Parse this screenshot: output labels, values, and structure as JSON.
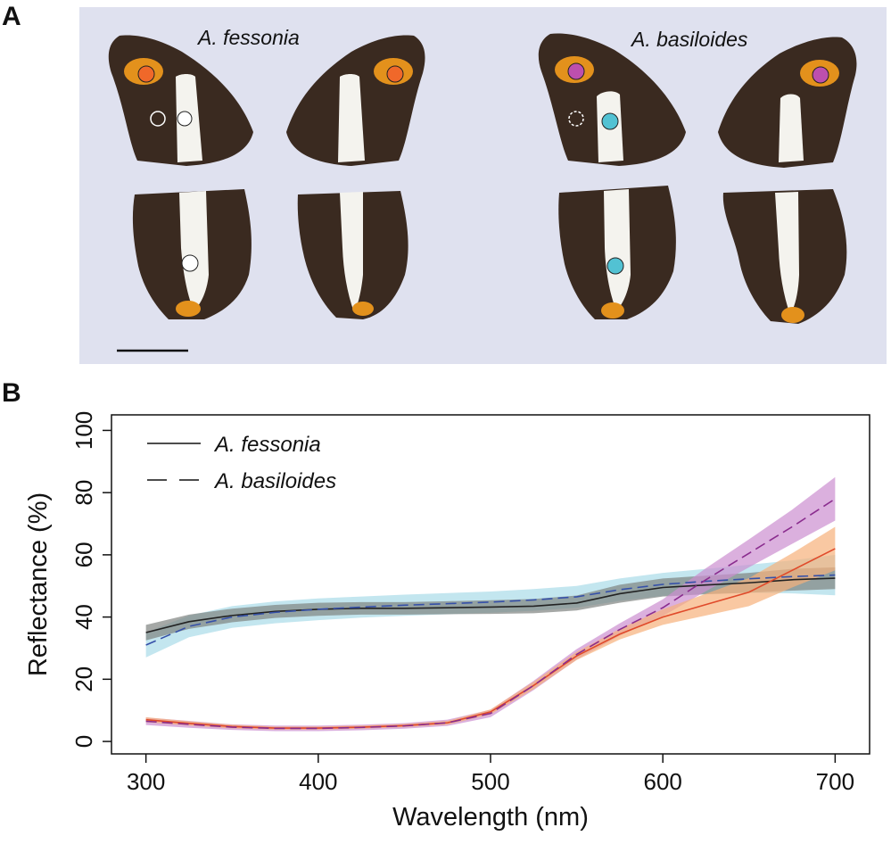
{
  "panel_a": {
    "label": "A",
    "species_left": "A. fessonia",
    "species_right": "A. basiloides",
    "colors": {
      "background": "#dfe1ef",
      "wing_dark": "#3a2a20",
      "band_white": "#f4f3ee",
      "patch_orange": "#e3911c",
      "marker_orange": "#f0682a",
      "marker_magenta": "#bd4fae",
      "marker_cyan": "#52c2d3"
    }
  },
  "panel_b": {
    "label": "B"
  },
  "chart_data": {
    "type": "line",
    "title": "",
    "xlabel": "Wavelength (nm)",
    "ylabel": "Reflectance (%)",
    "xlim": [
      300,
      700
    ],
    "ylim": [
      0,
      100
    ],
    "xticks": [
      300,
      400,
      500,
      600,
      700
    ],
    "yticks": [
      0,
      20,
      40,
      60,
      80,
      100
    ],
    "legend": [
      {
        "label": "A. fessonia",
        "style": "solid"
      },
      {
        "label": "A. basiloides",
        "style": "dashed"
      }
    ],
    "x": [
      300,
      325,
      350,
      375,
      400,
      425,
      450,
      475,
      500,
      525,
      550,
      575,
      600,
      625,
      650,
      675,
      700
    ],
    "series": [
      {
        "name": "A. fessonia white",
        "style": "solid",
        "color": "#222222",
        "band_color": "#7f8380",
        "values": [
          35,
          38.5,
          40.5,
          41.8,
          42.5,
          42.8,
          42.8,
          43,
          43.2,
          43.5,
          44.5,
          47.5,
          49.5,
          50.3,
          51,
          52,
          52.5
        ],
        "lower": [
          32.5,
          36.2,
          38.3,
          39.7,
          40.4,
          40.8,
          40.8,
          40.9,
          41,
          41.2,
          42.1,
          44.6,
          46.6,
          47.3,
          47.8,
          48.5,
          49
        ],
        "upper": [
          37.5,
          40.8,
          42.7,
          43.9,
          44.6,
          44.8,
          44.8,
          45.1,
          45.4,
          45.8,
          46.9,
          50.4,
          52.4,
          53.3,
          54.2,
          55.5,
          56
        ]
      },
      {
        "name": "A. basiloides white",
        "style": "dashed",
        "color": "#3550a8",
        "band_color": "#a9dbe8",
        "values": [
          31,
          37,
          40,
          41.5,
          42.5,
          43.2,
          43.8,
          44.3,
          44.8,
          45.5,
          46.5,
          48.8,
          50.5,
          51.5,
          52.3,
          53,
          53.5
        ],
        "lower": [
          27,
          33.5,
          36.5,
          38,
          39,
          39.8,
          40.4,
          40.9,
          41.4,
          42,
          43,
          45.2,
          46.8,
          47.5,
          47.8,
          47.6,
          47
        ],
        "upper": [
          35,
          40.5,
          43.5,
          45,
          46,
          46.6,
          47.2,
          47.7,
          48.2,
          49,
          50,
          52.4,
          54.2,
          55.5,
          56.8,
          58.2,
          60
        ]
      },
      {
        "name": "A. fessonia orange",
        "style": "solid",
        "color": "#e04a2a",
        "band_color": "#f6b07a",
        "values": [
          7,
          5.8,
          4.8,
          4.3,
          4.3,
          4.6,
          5.1,
          6,
          9.5,
          18,
          27.5,
          34.5,
          40,
          44,
          48,
          55,
          62
        ],
        "lower": [
          6.2,
          5.1,
          4.2,
          3.8,
          3.8,
          4.1,
          4.6,
          5.4,
          8.7,
          16.8,
          26.2,
          32.8,
          37.5,
          40.5,
          43.5,
          49.5,
          55
        ],
        "upper": [
          7.8,
          6.5,
          5.4,
          4.8,
          4.8,
          5.1,
          5.6,
          6.6,
          10.3,
          19.2,
          28.8,
          36.2,
          42.5,
          47.5,
          52.5,
          60.5,
          69
        ]
      },
      {
        "name": "A. basiloides magenta",
        "style": "dashed",
        "color": "#8a2c8e",
        "band_color": "#cc8fd0",
        "values": [
          6.5,
          5.5,
          4.6,
          4.2,
          4.2,
          4.5,
          5,
          6,
          9,
          18,
          28,
          36,
          43,
          52,
          60.5,
          69,
          78
        ],
        "lower": [
          5.3,
          4.4,
          3.7,
          3.3,
          3.3,
          3.6,
          4.1,
          5,
          7.8,
          16.5,
          26.3,
          34,
          40.3,
          48.3,
          56,
          63.5,
          71
        ],
        "upper": [
          7.7,
          6.6,
          5.5,
          5.1,
          5.1,
          5.4,
          5.9,
          7,
          10.2,
          19.5,
          29.7,
          38,
          45.7,
          55.7,
          65,
          74.5,
          85
        ]
      }
    ]
  }
}
